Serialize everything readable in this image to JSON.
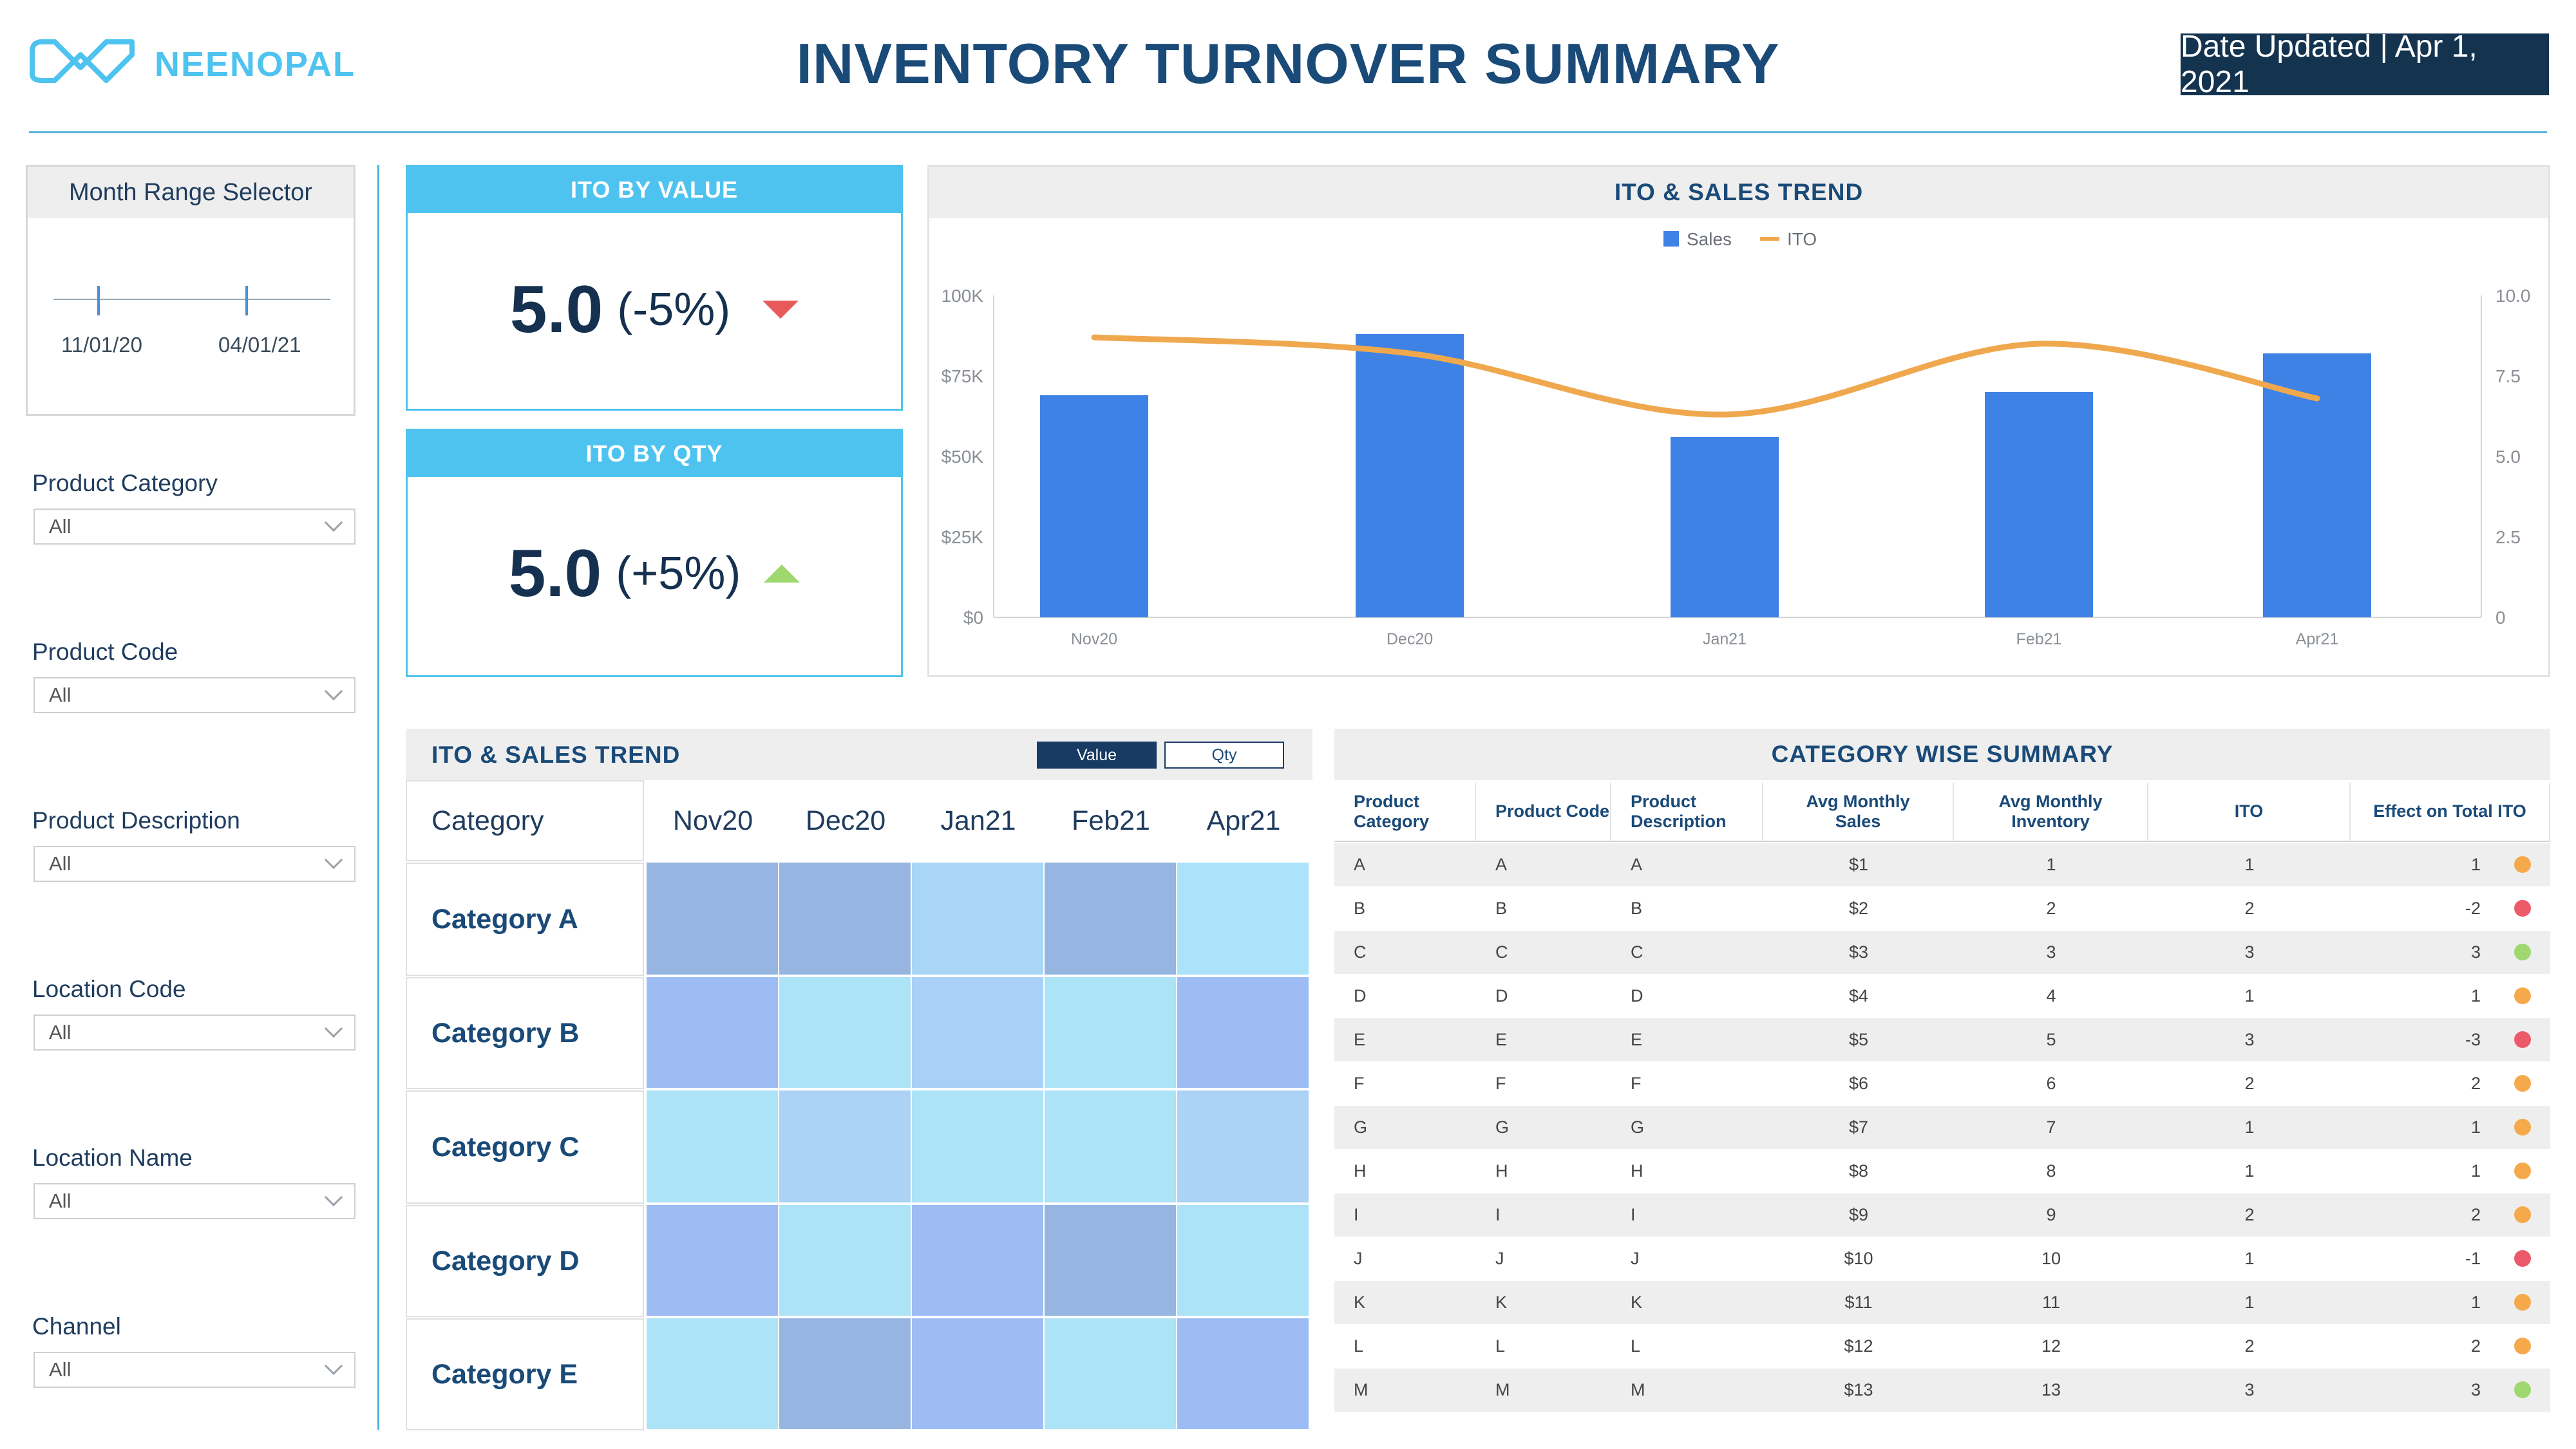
{
  "header": {
    "logo_text": "NEENOPAL",
    "title": "INVENTORY TURNOVER SUMMARY",
    "date_updated": "Date Updated | Apr 1, 2021"
  },
  "sidebar": {
    "range_selector": {
      "title": "Month Range Selector",
      "start_label": "11/01/20",
      "end_label": "04/01/21"
    },
    "filters": [
      {
        "label": "Product Category",
        "value": "All"
      },
      {
        "label": "Product Code",
        "value": "All"
      },
      {
        "label": "Product Description",
        "value": "All"
      },
      {
        "label": "Location Code",
        "value": "All"
      },
      {
        "label": "Location Name",
        "value": "All"
      },
      {
        "label": "Channel",
        "value": "All"
      }
    ]
  },
  "kpis": {
    "by_value": {
      "title": "ITO BY VALUE",
      "value": "5.0",
      "change": "(-5%)",
      "direction": "down",
      "color": "#e85a5a"
    },
    "by_qty": {
      "title": "ITO BY QTY",
      "value": "5.0",
      "change": "(+5%)",
      "direction": "up",
      "color": "#9fd86f"
    }
  },
  "trend": {
    "title": "ITO & SALES TREND",
    "legend": [
      "Sales",
      "ITO"
    ],
    "colors": {
      "sales": "#3e82e6",
      "ito": "#efa84e"
    }
  },
  "chart_data": {
    "type": "bar",
    "categories": [
      "Nov20",
      "Dec20",
      "Jan21",
      "Feb21",
      "Apr21"
    ],
    "series": [
      {
        "name": "Sales",
        "type": "bar",
        "axis": "left",
        "values": [
          69000,
          88000,
          56000,
          70000,
          82000
        ]
      },
      {
        "name": "ITO",
        "type": "line",
        "axis": "right",
        "values": [
          8.7,
          8.2,
          6.3,
          8.5,
          6.8
        ]
      }
    ],
    "y_left": {
      "ticks": [
        "$0",
        "$25K",
        "$50K",
        "$75K",
        "100K"
      ],
      "range": [
        0,
        100000
      ]
    },
    "y_right": {
      "ticks": [
        "0",
        "2.5",
        "5.0",
        "7.5",
        "10.0"
      ],
      "range": [
        0,
        10
      ]
    },
    "legend_position": "top-center",
    "grid": false
  },
  "heatmap": {
    "title": "ITO & SALES TREND",
    "toggle": [
      "Value",
      "Qty"
    ],
    "category_header": "Category",
    "months": [
      "Nov20",
      "Dec20",
      "Jan21",
      "Feb21",
      "Apr21"
    ],
    "rows": [
      {
        "label": "Category A",
        "colors": [
          "#96b6e1",
          "#96b6e1",
          "#a9d6f6",
          "#96b6e1",
          "#abe3fa"
        ]
      },
      {
        "label": "Category B",
        "colors": [
          "#9cbcf3",
          "#ade3f7",
          "#a9d0f6",
          "#ade3f7",
          "#9cbcf3"
        ]
      },
      {
        "label": "Category C",
        "colors": [
          "#ade3f7",
          "#acd3f6",
          "#ade3f7",
          "#ade3f7",
          "#acd3f6"
        ]
      },
      {
        "label": "Category D",
        "colors": [
          "#9cbcf3",
          "#ade3f7",
          "#9cbcf3",
          "#96b6e1",
          "#ade3f7"
        ]
      },
      {
        "label": "Category E",
        "colors": [
          "#ade3f7",
          "#96b6e1",
          "#9cbcf3",
          "#ade3f7",
          "#9cbcf3"
        ]
      }
    ]
  },
  "summary": {
    "title": "CATEGORY WISE SUMMARY",
    "columns": [
      "Product\nCategory",
      "Product Code",
      "Product\nDescription",
      "Avg Monthly\nSales",
      "Avg Monthly\nInventory",
      "ITO",
      "Effect on  Total ITO"
    ],
    "rows": [
      {
        "cat": "A",
        "code": "A",
        "desc": "A",
        "sales": "$1",
        "inv": "1",
        "ito": "1",
        "effect": "1",
        "status": "#f5a94b"
      },
      {
        "cat": "B",
        "code": "B",
        "desc": "B",
        "sales": "$2",
        "inv": "2",
        "ito": "2",
        "effect": "-2",
        "status": "#ec5a6a"
      },
      {
        "cat": "C",
        "code": "C",
        "desc": "C",
        "sales": "$3",
        "inv": "3",
        "ito": "3",
        "effect": "3",
        "status": "#9fd86f"
      },
      {
        "cat": "D",
        "code": "D",
        "desc": "D",
        "sales": "$4",
        "inv": "4",
        "ito": "1",
        "effect": "1",
        "status": "#f5a94b"
      },
      {
        "cat": "E",
        "code": "E",
        "desc": "E",
        "sales": "$5",
        "inv": "5",
        "ito": "3",
        "effect": "-3",
        "status": "#ec5a6a"
      },
      {
        "cat": "F",
        "code": "F",
        "desc": "F",
        "sales": "$6",
        "inv": "6",
        "ito": "2",
        "effect": "2",
        "status": "#f5a94b"
      },
      {
        "cat": "G",
        "code": "G",
        "desc": "G",
        "sales": "$7",
        "inv": "7",
        "ito": "1",
        "effect": "1",
        "status": "#f5a94b"
      },
      {
        "cat": "H",
        "code": "H",
        "desc": "H",
        "sales": "$8",
        "inv": "8",
        "ito": "1",
        "effect": "1",
        "status": "#f5a94b"
      },
      {
        "cat": "I",
        "code": "I",
        "desc": "I",
        "sales": "$9",
        "inv": "9",
        "ito": "2",
        "effect": "2",
        "status": "#f5a94b"
      },
      {
        "cat": "J",
        "code": "J",
        "desc": "J",
        "sales": "$10",
        "inv": "10",
        "ito": "1",
        "effect": "-1",
        "status": "#ec5a6a"
      },
      {
        "cat": "K",
        "code": "K",
        "desc": "K",
        "sales": "$11",
        "inv": "11",
        "ito": "1",
        "effect": "1",
        "status": "#f5a94b"
      },
      {
        "cat": "L",
        "code": "L",
        "desc": "L",
        "sales": "$12",
        "inv": "12",
        "ito": "2",
        "effect": "2",
        "status": "#f5a94b"
      },
      {
        "cat": "M",
        "code": "M",
        "desc": "M",
        "sales": "$13",
        "inv": "13",
        "ito": "3",
        "effect": "3",
        "status": "#9fd86f"
      }
    ]
  }
}
